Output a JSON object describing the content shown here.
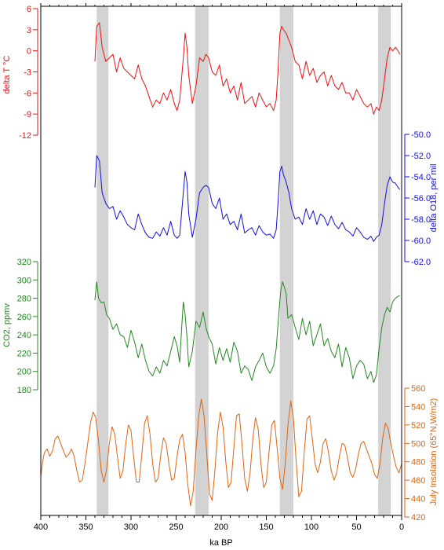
{
  "chart_data": [
    {
      "type": "line",
      "panel": "temperature",
      "series": [
        {
          "name": "delta T °C",
          "color": "#ee1111",
          "x": [
            340,
            338,
            335,
            332,
            328,
            324,
            320,
            316,
            312,
            308,
            304,
            300,
            296,
            292,
            288,
            284,
            280,
            276,
            272,
            268,
            264,
            260,
            256,
            252,
            249,
            246,
            244,
            242,
            240,
            238,
            236,
            232,
            228,
            224,
            220,
            217,
            214,
            210,
            206,
            202,
            198,
            194,
            190,
            186,
            182,
            178,
            174,
            170,
            166,
            162,
            158,
            154,
            150,
            146,
            142,
            139,
            137,
            135,
            133,
            131,
            128,
            125,
            122,
            118,
            114,
            110,
            106,
            102,
            98,
            94,
            90,
            86,
            82,
            78,
            74,
            70,
            66,
            62,
            58,
            54,
            50,
            46,
            42,
            38,
            34,
            31,
            28,
            25,
            22,
            19,
            16,
            13,
            10,
            7,
            4,
            2
          ],
          "y": [
            -1.5,
            3.5,
            4.0,
            0.5,
            -1.5,
            -1.0,
            -0.5,
            -3.0,
            -1.0,
            -2.5,
            -3.0,
            -3.5,
            -4.0,
            -2.0,
            -4.0,
            -5.0,
            -6.5,
            -8.0,
            -7.0,
            -7.5,
            -6.0,
            -7.0,
            -5.5,
            -7.5,
            -8.5,
            -7.0,
            -4.0,
            -1.0,
            2.5,
            0.5,
            -3.5,
            -7.5,
            -5.0,
            -1.0,
            -1.5,
            -0.5,
            -1.0,
            -3.0,
            -3.5,
            -2.0,
            -5.0,
            -4.0,
            -6.0,
            -5.0,
            -7.0,
            -4.5,
            -7.5,
            -7.0,
            -6.5,
            -8.0,
            -6.0,
            -7.0,
            -8.0,
            -7.5,
            -8.5,
            -7.0,
            -3.0,
            2.5,
            3.5,
            3.0,
            2.5,
            1.5,
            0.5,
            -1.5,
            -2.0,
            -4.0,
            -1.5,
            -3.5,
            -2.5,
            -4.5,
            -3.5,
            -3.0,
            -5.0,
            -3.5,
            -5.0,
            -5.5,
            -4.5,
            -6.0,
            -6.0,
            -7.0,
            -5.5,
            -6.5,
            -7.5,
            -8.0,
            -7.5,
            -9.0,
            -8.0,
            -8.5,
            -7.0,
            -4.0,
            -1.0,
            0.5,
            0.0,
            0.5,
            0.0,
            -0.5
          ]
        }
      ],
      "ylabel": "delta T °C",
      "ylim": [
        -12,
        6
      ],
      "yticks": [
        "6",
        "3",
        "0",
        "-3",
        "-6",
        "-9",
        "-12"
      ],
      "axis_side": "left"
    },
    {
      "type": "line",
      "panel": "delta O18",
      "series": [
        {
          "name": "delta O18, per mil",
          "color": "#1111dd",
          "x": [
            340,
            338,
            335,
            332,
            328,
            324,
            320,
            316,
            312,
            308,
            304,
            300,
            296,
            292,
            288,
            284,
            280,
            276,
            272,
            268,
            264,
            260,
            256,
            252,
            249,
            246,
            244,
            242,
            240,
            238,
            236,
            232,
            228,
            224,
            220,
            217,
            214,
            210,
            206,
            202,
            198,
            194,
            190,
            186,
            182,
            178,
            174,
            170,
            166,
            162,
            158,
            154,
            150,
            146,
            142,
            139,
            137,
            135,
            133,
            131,
            128,
            125,
            122,
            118,
            114,
            110,
            106,
            102,
            98,
            94,
            90,
            86,
            82,
            78,
            74,
            70,
            66,
            62,
            58,
            54,
            50,
            46,
            42,
            38,
            34,
            31,
            28,
            25,
            22,
            19,
            16,
            13,
            10,
            7,
            4,
            2
          ],
          "y": [
            -55.0,
            -52.0,
            -52.5,
            -55.5,
            -56.5,
            -57.0,
            -56.8,
            -58.0,
            -57.2,
            -57.8,
            -58.5,
            -58.8,
            -59.0,
            -57.5,
            -58.5,
            -59.3,
            -59.7,
            -59.8,
            -59.2,
            -59.6,
            -58.8,
            -59.5,
            -58.2,
            -59.5,
            -59.8,
            -59.5,
            -57.5,
            -55.5,
            -53.5,
            -54.5,
            -57.5,
            -59.7,
            -58.0,
            -55.5,
            -55.0,
            -54.8,
            -55.0,
            -56.5,
            -57.0,
            -56.0,
            -58.0,
            -57.5,
            -58.5,
            -58.2,
            -59.0,
            -57.5,
            -59.3,
            -59.0,
            -58.8,
            -59.5,
            -58.6,
            -59.2,
            -59.5,
            -59.4,
            -59.8,
            -59.0,
            -56.5,
            -53.5,
            -53.0,
            -53.8,
            -54.5,
            -55.5,
            -57.0,
            -58.0,
            -57.8,
            -58.5,
            -57.0,
            -58.0,
            -57.2,
            -58.5,
            -57.5,
            -57.8,
            -58.6,
            -57.7,
            -58.5,
            -58.9,
            -58.3,
            -59.0,
            -59.2,
            -59.6,
            -58.8,
            -59.2,
            -59.7,
            -59.9,
            -59.6,
            -60.1,
            -59.7,
            -59.5,
            -58.5,
            -56.5,
            -54.8,
            -54.0,
            -54.5,
            -54.6,
            -55.0,
            -55.2
          ]
        }
      ],
      "ylabel": "delta O18, per mil",
      "ylim": [
        -62,
        -50
      ],
      "yticks": [
        "-50.0",
        "-52.0",
        "-54.0",
        "-56.0",
        "-58.0",
        "-60.0",
        "-62.0"
      ],
      "axis_side": "right"
    },
    {
      "type": "line",
      "panel": "CO2",
      "series": [
        {
          "name": "CO2, ppmv",
          "color": "#228822",
          "x": [
            340,
            338,
            336,
            333,
            330,
            327,
            324,
            320,
            316,
            312,
            308,
            304,
            300,
            296,
            292,
            288,
            284,
            280,
            276,
            272,
            268,
            264,
            260,
            256,
            252,
            249,
            246,
            244,
            242,
            240,
            238,
            236,
            232,
            228,
            224,
            220,
            217,
            214,
            210,
            206,
            202,
            198,
            194,
            190,
            186,
            182,
            178,
            174,
            170,
            166,
            162,
            158,
            154,
            150,
            146,
            142,
            139,
            136,
            134,
            132,
            130,
            128,
            126,
            122,
            118,
            114,
            110,
            106,
            102,
            98,
            94,
            90,
            86,
            82,
            78,
            74,
            70,
            66,
            62,
            58,
            54,
            50,
            46,
            42,
            38,
            34,
            31,
            28,
            25,
            22,
            19,
            16,
            13,
            10,
            7,
            4,
            2
          ],
          "y": [
            278,
            298,
            280,
            275,
            276,
            262,
            258,
            246,
            252,
            240,
            238,
            226,
            245,
            232,
            215,
            230,
            212,
            200,
            195,
            205,
            198,
            212,
            206,
            222,
            238,
            228,
            210,
            245,
            276,
            262,
            238,
            205,
            222,
            255,
            248,
            265,
            248,
            238,
            230,
            208,
            226,
            212,
            225,
            210,
            232,
            222,
            198,
            206,
            202,
            190,
            205,
            212,
            220,
            205,
            198,
            206,
            225,
            265,
            288,
            298,
            292,
            285,
            258,
            262,
            248,
            235,
            258,
            240,
            255,
            228,
            240,
            252,
            228,
            236,
            222,
            215,
            230,
            205,
            226,
            215,
            192,
            206,
            212,
            208,
            192,
            200,
            188,
            196,
            225,
            248,
            262,
            270,
            265,
            276,
            280,
            282,
            283
          ]
        }
      ],
      "ylabel": "CO2, ppmv",
      "ylim": [
        180,
        320
      ],
      "yticks": [
        "320",
        "300",
        "280",
        "260",
        "240",
        "220",
        "200",
        "180"
      ],
      "axis_side": "left"
    },
    {
      "type": "line",
      "panel": "insolation",
      "series": [
        {
          "name": "July Insolation (65°N,W/m2)",
          "color": "#dd6611",
          "x": [
            400,
            398,
            396,
            393,
            390,
            387,
            384,
            381,
            378,
            375,
            372,
            369,
            366,
            363,
            360,
            357,
            354,
            351,
            348,
            345,
            342,
            339,
            336,
            333,
            330,
            327,
            324,
            321,
            318,
            315,
            312,
            309,
            306,
            303,
            300,
            297,
            294,
            291,
            288,
            285,
            282,
            279,
            276,
            273,
            270,
            267,
            264,
            261,
            258,
            255,
            252,
            249,
            246,
            243,
            240,
            237,
            234,
            231,
            228,
            225,
            222,
            219,
            216,
            213,
            210,
            207,
            204,
            201,
            198,
            195,
            192,
            189,
            186,
            183,
            180,
            177,
            174,
            171,
            168,
            165,
            162,
            159,
            156,
            153,
            150,
            147,
            144,
            141,
            138,
            135,
            132,
            129,
            126,
            123,
            120,
            117,
            114,
            111,
            108,
            105,
            102,
            99,
            96,
            93,
            90,
            87,
            84,
            81,
            78,
            75,
            72,
            69,
            66,
            63,
            60,
            57,
            54,
            51,
            48,
            45,
            42,
            39,
            36,
            33,
            30,
            27,
            24,
            21,
            18,
            15,
            12,
            9,
            6,
            3,
            0
          ],
          "y": [
            464,
            480,
            490,
            494,
            486,
            492,
            505,
            508,
            500,
            492,
            485,
            488,
            494,
            486,
            470,
            458,
            460,
            478,
            500,
            522,
            534,
            528,
            502,
            470,
            458,
            472,
            500,
            518,
            510,
            485,
            462,
            470,
            498,
            520,
            514,
            485,
            458,
            458,
            488,
            522,
            530,
            510,
            478,
            458,
            462,
            488,
            506,
            500,
            478,
            460,
            462,
            486,
            504,
            510,
            490,
            455,
            432,
            448,
            492,
            530,
            548,
            530,
            488,
            445,
            438,
            470,
            512,
            534,
            518,
            480,
            452,
            458,
            495,
            530,
            532,
            500,
            462,
            448,
            468,
            505,
            528,
            515,
            478,
            452,
            458,
            490,
            520,
            525,
            495,
            462,
            450,
            478,
            520,
            546,
            528,
            482,
            442,
            448,
            490,
            526,
            530,
            505,
            478,
            468,
            480,
            500,
            505,
            490,
            470,
            460,
            468,
            486,
            500,
            498,
            484,
            468,
            463,
            472,
            488,
            500,
            502,
            494,
            486,
            478,
            466,
            462,
            478,
            506,
            522,
            516,
            500,
            486,
            474,
            468,
            478
          ]
        }
      ],
      "ylabel": "July Insolation (65°N,W/m2)",
      "ylim": [
        420,
        560
      ],
      "yticks": [
        "560",
        "540",
        "520",
        "500",
        "480",
        "460",
        "440",
        "420"
      ],
      "axis_side": "right"
    }
  ],
  "x_axis": {
    "xlabel": "ka BP",
    "xlim": [
      400,
      0
    ],
    "xticks": [
      "400",
      "350",
      "300",
      "250",
      "200",
      "150",
      "100",
      "50",
      "0"
    ]
  },
  "shaded_bands": [
    [
      338,
      325
    ],
    [
      229,
      214
    ],
    [
      135,
      120
    ],
    [
      26,
      12
    ]
  ],
  "band_color": "#d3d3d3",
  "grid": false
}
